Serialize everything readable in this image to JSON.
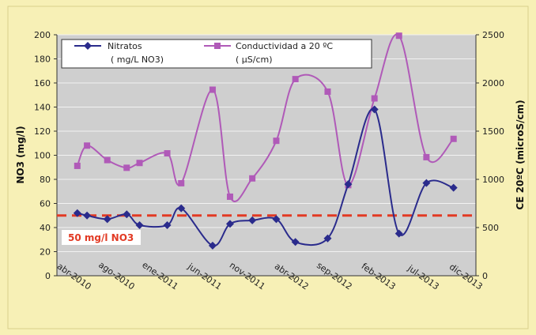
{
  "chart_data": {
    "type": "line",
    "categories": [
      "abr-2010",
      "ago-2010",
      "ene-2011",
      "jun-2011",
      "nov-2011",
      "abr-2012",
      "sep-2012",
      "feb-2013",
      "jul-2013",
      "dic-2013"
    ],
    "y_left": {
      "label": "NO3 (mg/l)",
      "range": [
        0,
        200
      ],
      "ticks": [
        "0",
        "20",
        "40",
        "60",
        "80",
        "100",
        "120",
        "140",
        "160",
        "180",
        "200"
      ]
    },
    "y_right": {
      "label": "CE 20ºC (microS/cm)",
      "range": [
        0,
        2500
      ],
      "ticks": [
        "0",
        "500",
        "1000",
        "1500",
        "2000",
        "2500"
      ]
    },
    "grid": true,
    "legend_position": "top",
    "series": [
      {
        "name": "Nitratos",
        "name_sub": "( mg/L NO3)",
        "axis": "left",
        "color": "#2a2b8c",
        "marker": "diamond",
        "x": [
          "2010-05-06",
          "2010-06-09",
          "2010-08-19",
          "2010-10-26",
          "2010-12-10",
          "2011-03-17",
          "2011-05-05",
          "2011-08-23",
          "2011-10-23",
          "2012-01-09",
          "2012-04-02",
          "2012-06-08",
          "2012-09-29",
          "2012-12-10",
          "2013-03-12",
          "2013-06-06",
          "2013-09-10",
          "2013-12-14"
        ],
        "values": [
          52,
          50,
          47,
          51,
          42,
          42,
          56,
          25,
          43,
          46,
          47,
          28,
          31,
          76,
          138,
          35,
          77,
          73
        ]
      },
      {
        "name": "Conductividad a 20 ºC",
        "name_sub": "( µS/cm)",
        "axis": "right",
        "color": "#b05ab8",
        "marker": "square",
        "x": [
          "2010-05-06",
          "2010-06-09",
          "2010-08-19",
          "2010-10-26",
          "2010-12-10",
          "2011-03-17",
          "2011-05-05",
          "2011-08-23",
          "2011-10-23",
          "2012-01-09",
          "2012-04-02",
          "2012-06-08",
          "2012-09-29",
          "2012-12-10",
          "2013-03-12",
          "2013-06-06",
          "2013-09-10",
          "2013-12-14"
        ],
        "values": [
          1140,
          1350,
          1200,
          1120,
          1170,
          1270,
          960,
          1930,
          820,
          1010,
          1400,
          2040,
          1910,
          940,
          1840,
          2490,
          1230,
          1420
        ]
      }
    ],
    "threshold": {
      "value": 50,
      "axis": "left",
      "label": "50 mg/l NO3",
      "color": "#e23a24"
    }
  }
}
